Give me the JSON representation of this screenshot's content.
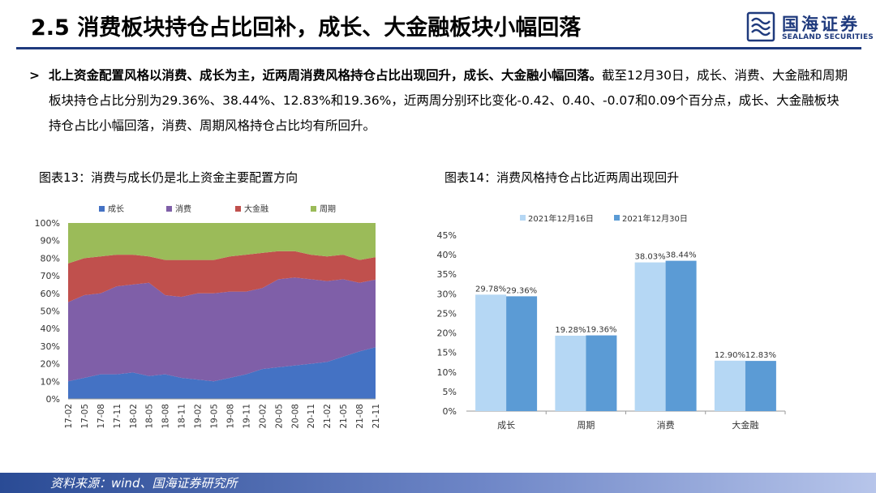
{
  "header": {
    "title": "2.5 消费板块持仓占比回补，成长、大金融板块小幅回落",
    "logo_cn": "国海证券",
    "logo_en": "SEALAND SECURITIES"
  },
  "bullet": {
    "bold": "北上资金配置风格以消费、成长为主，近两周消费风格持仓占比出现回升，成长、大金融小幅回落。",
    "rest": "截至12月30日，成长、消费、大金融和周期板块持仓占比分别为29.36%、38.44%、12.83%和19.36%，近两周分别环比变化-0.42、0.40、-0.07和0.09个百分点，成长、大金融板块持仓占比小幅回落，消费、周期风格持仓占比均有所回升。"
  },
  "footer": {
    "source": "资料来源：wind、国海证券研究所"
  },
  "colors": {
    "growth": "#4472c4",
    "consumption": "#7f5fa8",
    "finance": "#c0504d",
    "cycle": "#9bbb59",
    "bar_dec16": "#b5d7f4",
    "bar_dec30": "#5b9bd5",
    "brand": "#1f3a7d"
  },
  "chart_data": [
    {
      "type": "area",
      "figure_title": "图表13：消费与成长仍是北上资金主要配置方向",
      "stacking": "percent",
      "legend_position": "top",
      "ylim": [
        0,
        100
      ],
      "y_ticks": [
        "0%",
        "10%",
        "20%",
        "30%",
        "40%",
        "50%",
        "60%",
        "70%",
        "80%",
        "90%",
        "100%"
      ],
      "x_tick_labels": [
        "17-02",
        "17-05",
        "17-08",
        "17-11",
        "18-02",
        "18-05",
        "18-08",
        "18-11",
        "19-02",
        "19-05",
        "19-08",
        "19-11",
        "20-02",
        "20-05",
        "20-08",
        "20-11",
        "21-02",
        "21-05",
        "21-08",
        "21-11"
      ],
      "grid": false,
      "series": [
        {
          "name": "成长",
          "color": "#4472c4",
          "values": [
            10,
            12,
            14,
            14,
            15,
            13,
            14,
            12,
            11,
            10,
            12,
            14,
            17,
            18,
            19,
            20,
            21,
            24,
            27,
            29.4
          ]
        },
        {
          "name": "消费",
          "color": "#7f5fa8",
          "values": [
            45,
            47,
            46,
            50,
            50,
            53,
            45,
            46,
            49,
            50,
            49,
            47,
            46,
            50,
            50,
            48,
            46,
            44,
            39,
            38.4
          ]
        },
        {
          "name": "大金融",
          "color": "#c0504d",
          "values": [
            22,
            21,
            21,
            18,
            17,
            15,
            20,
            21,
            19,
            19,
            20,
            21,
            20,
            16,
            15,
            14,
            14,
            14,
            13,
            12.8
          ]
        },
        {
          "name": "周期",
          "color": "#9bbb59",
          "values": [
            23,
            20,
            19,
            18,
            18,
            19,
            21,
            21,
            21,
            21,
            19,
            18,
            17,
            16,
            16,
            18,
            19,
            18,
            21,
            19.4
          ]
        }
      ]
    },
    {
      "type": "bar",
      "figure_title": "图表14：消费风格持仓占比近两周出现回升",
      "legend_position": "top",
      "categories": [
        "成长",
        "周期",
        "消费",
        "大金融"
      ],
      "ylim": [
        0,
        45
      ],
      "y_ticks": [
        "0%",
        "5%",
        "10%",
        "15%",
        "20%",
        "25%",
        "30%",
        "35%",
        "40%",
        "45%"
      ],
      "grid": false,
      "series": [
        {
          "name": "2021年12月16日",
          "color": "#b5d7f4",
          "values": [
            29.78,
            19.28,
            38.03,
            12.9
          ],
          "labels": [
            "29.78%",
            "19.28%",
            "38.03%",
            "12.90%"
          ]
        },
        {
          "name": "2021年12月30日",
          "color": "#5b9bd5",
          "values": [
            29.36,
            19.36,
            38.44,
            12.83
          ],
          "labels": [
            "29.36%",
            "19.36%",
            "38.44%",
            "12.83%"
          ]
        }
      ]
    }
  ]
}
